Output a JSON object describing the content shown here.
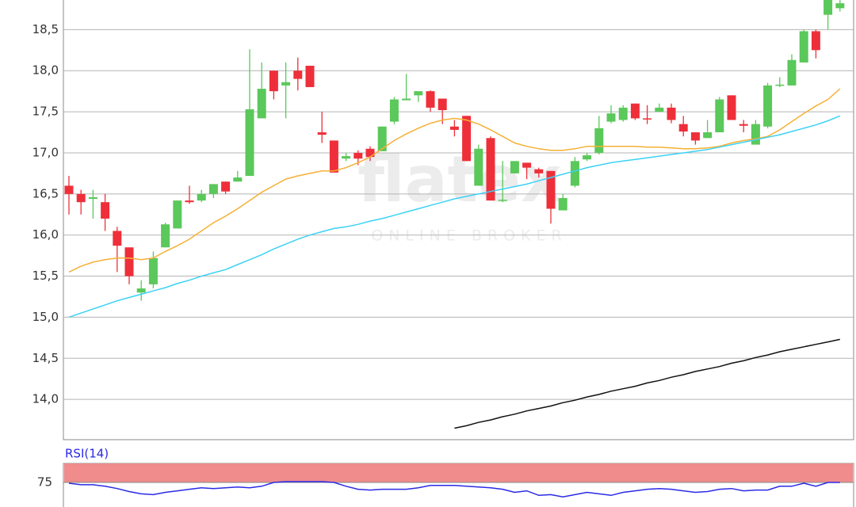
{
  "watermark": {
    "logo": "flatex",
    "tagline": "ONLINE BROKER"
  },
  "chart_data": [
    {
      "type": "candlestick",
      "ylim": [
        13.51,
        18.86
      ],
      "yticks": [
        {
          "value": 14,
          "label": "14,0"
        },
        {
          "value": 14.5,
          "label": "14,5"
        },
        {
          "value": 15,
          "label": "15,0"
        },
        {
          "value": 15.5,
          "label": "15,5"
        },
        {
          "value": 16,
          "label": "16,0"
        },
        {
          "value": 16.5,
          "label": "16,5"
        },
        {
          "value": 17,
          "label": "17,0"
        },
        {
          "value": 17.5,
          "label": "17,5"
        },
        {
          "value": 18,
          "label": "18,0"
        },
        {
          "value": 18.5,
          "label": "18,5"
        }
      ],
      "grid": true,
      "up_color": "#5ac85a",
      "down_color": "#ee2f3a",
      "open": [
        16.6,
        16.5,
        16.44,
        16.4,
        16.05,
        15.85,
        15.3,
        15.4,
        15.85,
        16.08,
        16.42,
        16.42,
        16.5,
        16.65,
        16.65,
        16.72,
        17.42,
        18.0,
        17.82,
        18.0,
        18.06,
        17.25,
        17.15,
        16.93,
        17.0,
        17.05,
        17.02,
        17.38,
        17.64,
        17.7,
        17.75,
        17.66,
        17.32,
        17.45,
        16.6,
        17.18,
        16.42,
        16.75,
        16.88,
        16.8,
        16.78,
        16.3,
        16.6,
        16.92,
        17.0,
        17.38,
        17.4,
        17.6,
        17.42,
        17.5,
        17.55,
        17.35,
        17.25,
        17.18,
        17.25,
        17.7,
        17.35,
        17.1,
        17.32,
        17.82,
        17.82,
        18.1,
        18.48,
        18.68,
        18.76
      ],
      "high": [
        16.72,
        16.55,
        16.55,
        16.5,
        16.1,
        15.85,
        15.45,
        15.8,
        16.15,
        16.42,
        16.6,
        16.55,
        16.62,
        16.65,
        16.78,
        18.26,
        18.1,
        18.0,
        18.1,
        18.16,
        18.06,
        17.5,
        17.15,
        17.0,
        17.03,
        17.08,
        17.32,
        17.68,
        17.96,
        17.75,
        17.76,
        17.66,
        17.4,
        17.45,
        17.1,
        17.2,
        16.9,
        16.9,
        16.88,
        16.82,
        16.78,
        16.5,
        16.95,
        17.0,
        17.45,
        17.58,
        17.58,
        17.6,
        17.58,
        17.6,
        17.6,
        17.45,
        17.25,
        17.4,
        17.68,
        17.7,
        17.4,
        17.4,
        17.85,
        17.92,
        18.2,
        18.5,
        18.5,
        18.86,
        18.86
      ],
      "low": [
        16.25,
        16.25,
        16.2,
        16.05,
        15.55,
        15.4,
        15.2,
        15.35,
        15.85,
        16.08,
        16.38,
        16.4,
        16.45,
        16.5,
        16.65,
        16.72,
        17.42,
        17.65,
        17.42,
        17.76,
        17.8,
        17.12,
        16.76,
        16.9,
        16.85,
        16.9,
        17.02,
        17.35,
        17.64,
        17.62,
        17.5,
        17.35,
        17.2,
        16.9,
        16.6,
        16.42,
        16.4,
        16.75,
        16.68,
        16.7,
        16.14,
        16.3,
        16.58,
        16.9,
        16.98,
        17.36,
        17.38,
        17.4,
        17.35,
        17.5,
        17.36,
        17.2,
        17.1,
        17.18,
        17.25,
        17.4,
        17.25,
        17.1,
        17.3,
        17.8,
        17.82,
        18.1,
        18.15,
        18.5,
        18.72
      ],
      "close": [
        16.5,
        16.4,
        16.46,
        16.2,
        15.87,
        15.5,
        15.35,
        15.72,
        16.13,
        16.42,
        16.4,
        16.5,
        16.62,
        16.53,
        16.7,
        17.53,
        17.78,
        17.75,
        17.86,
        17.9,
        17.8,
        17.22,
        16.76,
        16.96,
        16.93,
        16.95,
        17.32,
        17.65,
        17.66,
        17.75,
        17.55,
        17.52,
        17.28,
        16.9,
        17.05,
        16.42,
        16.43,
        16.9,
        16.82,
        16.75,
        16.32,
        16.45,
        16.9,
        16.97,
        17.3,
        17.48,
        17.55,
        17.42,
        17.41,
        17.55,
        17.4,
        17.26,
        17.15,
        17.25,
        17.65,
        17.4,
        17.33,
        17.35,
        17.82,
        17.83,
        18.13,
        18.48,
        18.25,
        18.86,
        18.82
      ],
      "series": [
        {
          "color": "#f5b035",
          "values": [
            15.55,
            15.62,
            15.67,
            15.7,
            15.72,
            15.72,
            15.7,
            15.72,
            15.8,
            15.87,
            15.95,
            16.05,
            16.15,
            16.23,
            16.32,
            16.42,
            16.52,
            16.6,
            16.68,
            16.72,
            16.75,
            16.78,
            16.78,
            16.82,
            16.88,
            16.95,
            17.05,
            17.15,
            17.23,
            17.3,
            17.36,
            17.4,
            17.42,
            17.4,
            17.35,
            17.28,
            17.2,
            17.12,
            17.08,
            17.05,
            17.03,
            17.03,
            17.05,
            17.08,
            17.08,
            17.08,
            17.08,
            17.08,
            17.07,
            17.07,
            17.06,
            17.05,
            17.05,
            17.06,
            17.08,
            17.12,
            17.15,
            17.17,
            17.2,
            17.28,
            17.38,
            17.48,
            17.57,
            17.65,
            17.78
          ]
        },
        {
          "color": "#3cd2f5",
          "values": [
            15.0,
            15.05,
            15.1,
            15.15,
            15.2,
            15.24,
            15.28,
            15.32,
            15.36,
            15.41,
            15.45,
            15.5,
            15.54,
            15.58,
            15.64,
            15.7,
            15.76,
            15.83,
            15.89,
            15.95,
            16.0,
            16.04,
            16.08,
            16.1,
            16.13,
            16.17,
            16.2,
            16.24,
            16.28,
            16.32,
            16.36,
            16.4,
            16.44,
            16.47,
            16.5,
            16.53,
            16.56,
            16.59,
            16.62,
            16.66,
            16.7,
            16.74,
            16.78,
            16.82,
            16.85,
            16.88,
            16.9,
            16.92,
            16.94,
            16.96,
            16.98,
            17.0,
            17.02,
            17.04,
            17.07,
            17.1,
            17.13,
            17.16,
            17.19,
            17.22,
            17.26,
            17.3,
            17.34,
            17.39,
            17.45
          ]
        },
        {
          "color": "#111111",
          "values": [
            null,
            null,
            null,
            null,
            null,
            null,
            null,
            null,
            null,
            null,
            null,
            null,
            null,
            null,
            null,
            null,
            null,
            null,
            null,
            null,
            null,
            null,
            null,
            null,
            null,
            null,
            null,
            null,
            null,
            null,
            null,
            null,
            13.65,
            13.68,
            13.72,
            13.75,
            13.79,
            13.82,
            13.86,
            13.89,
            13.92,
            13.96,
            13.99,
            14.03,
            14.06,
            14.1,
            14.13,
            14.16,
            14.2,
            14.23,
            14.27,
            14.3,
            14.34,
            14.37,
            14.4,
            14.44,
            14.47,
            14.51,
            14.54,
            14.58,
            14.61,
            14.64,
            14.67,
            14.7,
            14.73
          ]
        }
      ]
    },
    {
      "type": "line",
      "title": "RSI(14)",
      "ylim": [
        42,
        100
      ],
      "yticks": [
        75
      ],
      "band": [
        75,
        100
      ],
      "band_color": "#f08c8c",
      "series": [
        {
          "color": "#2a2ae6",
          "values": [
            74,
            72,
            72,
            70,
            67,
            63,
            60,
            59,
            62,
            64,
            66,
            68,
            67,
            68,
            69,
            68,
            70,
            75,
            76,
            76,
            76,
            76,
            75,
            70,
            66,
            65,
            66,
            66,
            66,
            68,
            71,
            71,
            71,
            70,
            69,
            68,
            66,
            62,
            64,
            58,
            59,
            56,
            59,
            62,
            60,
            58,
            62,
            64,
            66,
            67,
            66,
            64,
            62,
            63,
            66,
            67,
            64,
            65,
            65,
            70,
            70,
            74,
            70,
            75,
            75
          ]
        }
      ]
    }
  ]
}
